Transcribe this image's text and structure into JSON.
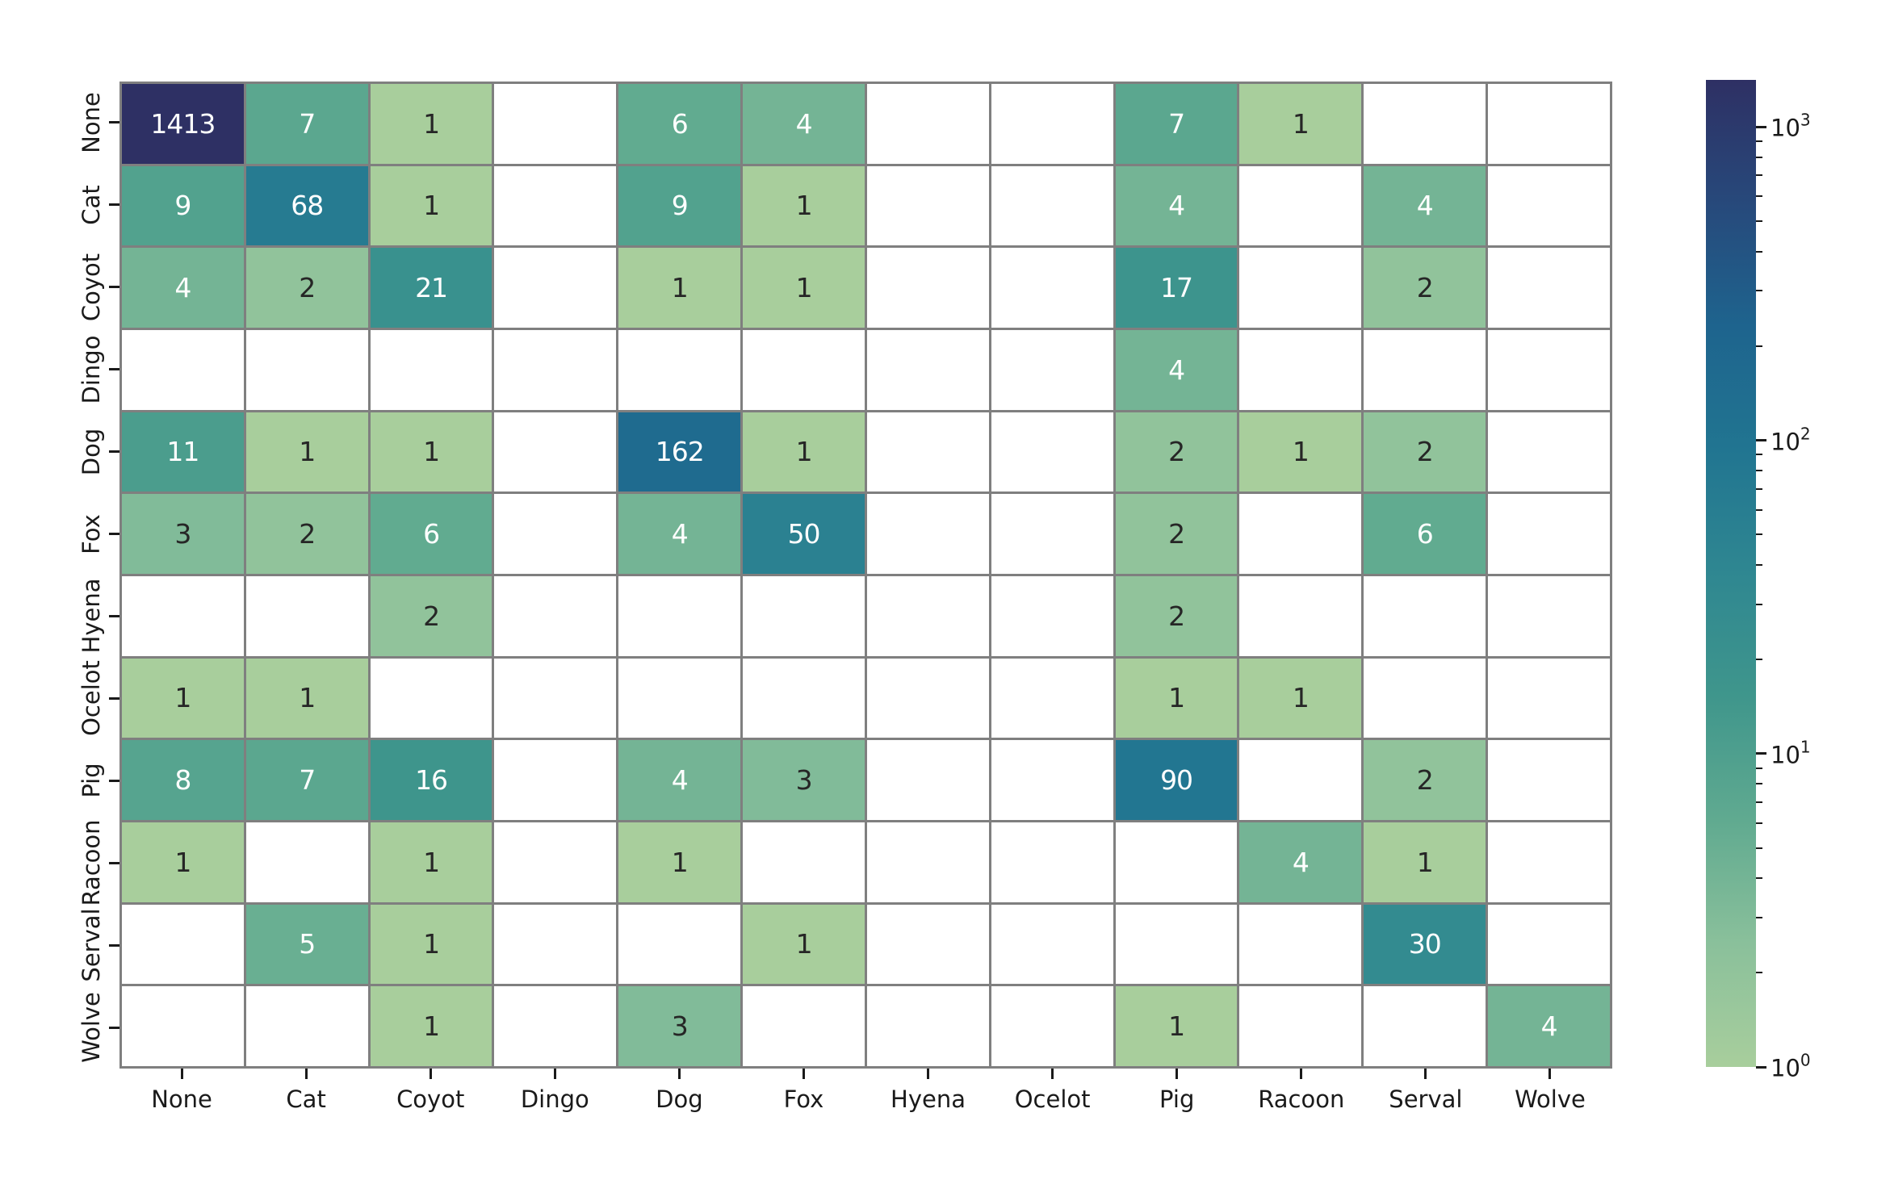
{
  "chart_data": {
    "type": "heatmap",
    "title": "",
    "x_axis_labels": [
      "None",
      "Cat",
      "Coyot",
      "Dingo",
      "Dog",
      "Fox",
      "Hyena",
      "Ocelot",
      "Pig",
      "Racoon",
      "Serval",
      "Wolve"
    ],
    "y_axis_labels": [
      "None",
      "Cat",
      "Coyot",
      "Dingo",
      "Dog",
      "Fox",
      "Hyena",
      "Ocelot",
      "Pig",
      "Racoon",
      "Serval",
      "Wolve"
    ],
    "matrix": [
      [
        1413,
        7,
        1,
        null,
        6,
        4,
        null,
        null,
        7,
        1,
        null,
        null
      ],
      [
        9,
        68,
        1,
        null,
        9,
        1,
        null,
        null,
        4,
        null,
        4,
        null
      ],
      [
        4,
        2,
        21,
        null,
        1,
        1,
        null,
        null,
        17,
        null,
        2,
        null
      ],
      [
        null,
        null,
        null,
        null,
        null,
        null,
        null,
        null,
        4,
        null,
        null,
        null
      ],
      [
        11,
        1,
        1,
        null,
        162,
        1,
        null,
        null,
        2,
        1,
        2,
        null
      ],
      [
        3,
        2,
        6,
        null,
        4,
        50,
        null,
        null,
        2,
        null,
        6,
        null
      ],
      [
        null,
        null,
        2,
        null,
        null,
        null,
        null,
        null,
        2,
        null,
        null,
        null
      ],
      [
        1,
        1,
        null,
        null,
        null,
        null,
        null,
        null,
        1,
        1,
        null,
        null
      ],
      [
        8,
        7,
        16,
        null,
        4,
        3,
        null,
        null,
        90,
        null,
        2,
        null
      ],
      [
        1,
        null,
        1,
        null,
        1,
        null,
        null,
        null,
        null,
        4,
        1,
        null
      ],
      [
        null,
        5,
        1,
        null,
        null,
        1,
        null,
        null,
        null,
        null,
        30,
        null
      ],
      [
        null,
        null,
        1,
        null,
        3,
        null,
        null,
        null,
        1,
        null,
        null,
        4
      ]
    ],
    "scale": {
      "norm": "log",
      "vmin": 1,
      "vmax": 1413
    },
    "colormap": {
      "name": "crest",
      "anchors": [
        {
          "t": 0.0,
          "color": "#a8ce9c"
        },
        {
          "t": 0.125,
          "color": "#8ac09b"
        },
        {
          "t": 0.25,
          "color": "#60aa90"
        },
        {
          "t": 0.375,
          "color": "#3f968c"
        },
        {
          "t": 0.5,
          "color": "#2f8791"
        },
        {
          "t": 0.625,
          "color": "#217591"
        },
        {
          "t": 0.75,
          "color": "#1e648e"
        },
        {
          "t": 0.875,
          "color": "#27497b"
        },
        {
          "t": 1.0,
          "color": "#2e3064"
        }
      ]
    },
    "colorbar": {
      "position": "right",
      "major_ticks": [
        {
          "value": 1000,
          "base": "10",
          "exp": "3"
        },
        {
          "value": 100,
          "base": "10",
          "exp": "2"
        },
        {
          "value": 10,
          "base": "10",
          "exp": "1"
        },
        {
          "value": 1,
          "base": "10",
          "exp": "0"
        }
      ],
      "minor_tick_decades": [
        0,
        1,
        2
      ]
    },
    "style": {
      "grid_line_color": "#7f7f7f",
      "empty_cell_color": "#ffffff",
      "background_color": "#ffffff",
      "annotation_dark_text": "#262626",
      "annotation_light_text": "#ffffff",
      "white_text_min_value": 4,
      "legend": "none",
      "grid": "on"
    }
  }
}
